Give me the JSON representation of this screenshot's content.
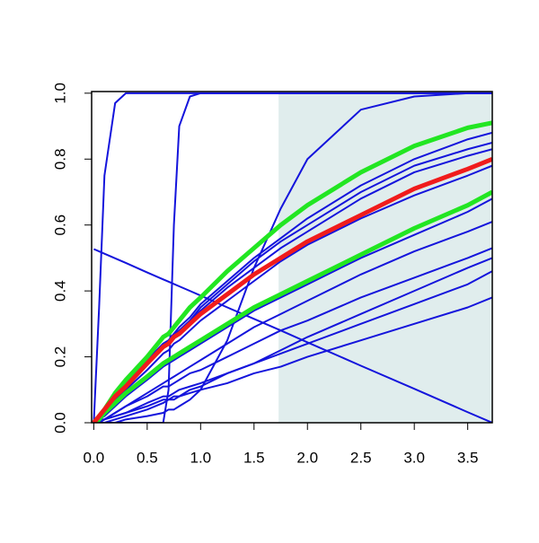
{
  "chart_data": {
    "type": "line",
    "x": [
      0,
      0.05,
      0.1,
      0.2,
      0.3,
      0.5,
      0.65,
      0.7,
      0.75,
      0.8,
      0.9,
      1.0,
      1.25,
      1.5,
      1.75,
      2.0,
      2.5,
      3.0,
      3.5,
      3.73
    ],
    "xlim": [
      -0.02,
      3.73
    ],
    "ylim": [
      0,
      1.005
    ],
    "xticks": [
      {
        "value": 0,
        "label": "0.0"
      },
      0.5,
      {
        "value": 1,
        "label": "1.0"
      },
      1.5,
      {
        "value": 2,
        "label": "2.0"
      },
      2.5,
      {
        "value": 3,
        "label": "3.0"
      },
      3.5
    ],
    "yticks": [
      {
        "value": 0,
        "label": "0.0"
      },
      0.2,
      0.4,
      0.6,
      0.8,
      {
        "value": 1,
        "label": "1.0"
      }
    ],
    "shaded_region": {
      "x": [
        1.73,
        3.73
      ],
      "color": "#e0eded"
    },
    "series": [
      {
        "color": "#1414dc",
        "line_width": 2,
        "values": [
          0,
          0.35,
          0.75,
          0.97,
          1,
          1,
          1,
          1,
          1,
          1,
          1,
          1,
          1,
          1,
          1,
          1,
          1,
          1,
          1,
          1
        ]
      },
      {
        "color": "#1414dc",
        "line_width": 2,
        "values": [
          0,
          0,
          0,
          0,
          0,
          0,
          0,
          0.1,
          0.6,
          0.9,
          0.99,
          1,
          1,
          1,
          1,
          1,
          1,
          1,
          1,
          1
        ]
      },
      {
        "color": "#1414dc",
        "line_width": 2,
        "values": [
          0,
          0,
          0,
          0,
          0.01,
          0.02,
          0.03,
          0.04,
          0.04,
          0.05,
          0.07,
          0.1,
          0.25,
          0.47,
          0.65,
          0.8,
          0.95,
          0.99,
          1,
          1
        ]
      },
      {
        "color": "#1414dc",
        "line_width": 2,
        "values": [
          0.527,
          0.52,
          0.513,
          0.499,
          0.485,
          0.456,
          0.435,
          0.428,
          0.421,
          0.414,
          0.4,
          0.386,
          0.35,
          0.315,
          0.28,
          0.244,
          0.173,
          0.103,
          0.032,
          0
        ]
      },
      {
        "color": "#1414dc",
        "line_width": 2,
        "values": [
          0,
          0.02,
          0.04,
          0.08,
          0.12,
          0.19,
          0.24,
          0.25,
          0.27,
          0.29,
          0.32,
          0.36,
          0.43,
          0.5,
          0.56,
          0.62,
          0.72,
          0.8,
          0.86,
          0.88
        ]
      },
      {
        "color": "#1414dc",
        "line_width": 2,
        "values": [
          0,
          0.02,
          0.04,
          0.08,
          0.12,
          0.19,
          0.24,
          0.25,
          0.27,
          0.28,
          0.31,
          0.35,
          0.42,
          0.49,
          0.55,
          0.6,
          0.7,
          0.78,
          0.83,
          0.85
        ]
      },
      {
        "color": "#1414dc",
        "line_width": 2,
        "values": [
          0,
          0.02,
          0.04,
          0.08,
          0.11,
          0.18,
          0.23,
          0.25,
          0.26,
          0.28,
          0.31,
          0.34,
          0.41,
          0.47,
          0.53,
          0.58,
          0.68,
          0.76,
          0.81,
          0.83
        ]
      },
      {
        "color": "#1414dc",
        "line_width": 2,
        "values": [
          0,
          0.01,
          0.03,
          0.07,
          0.1,
          0.16,
          0.21,
          0.22,
          0.24,
          0.25,
          0.28,
          0.31,
          0.37,
          0.43,
          0.49,
          0.54,
          0.62,
          0.69,
          0.75,
          0.78
        ]
      },
      {
        "color": "#1414dc",
        "line_width": 2,
        "values": [
          0,
          0.01,
          0.02,
          0.05,
          0.08,
          0.13,
          0.17,
          0.18,
          0.19,
          0.2,
          0.22,
          0.24,
          0.29,
          0.34,
          0.38,
          0.42,
          0.5,
          0.57,
          0.64,
          0.68
        ]
      },
      {
        "color": "#1414dc",
        "line_width": 2,
        "values": [
          0,
          0,
          0.01,
          0.03,
          0.05,
          0.09,
          0.12,
          0.13,
          0.14,
          0.15,
          0.17,
          0.19,
          0.24,
          0.29,
          0.33,
          0.37,
          0.45,
          0.52,
          0.58,
          0.61
        ]
      },
      {
        "color": "#1414dc",
        "line_width": 2,
        "values": [
          0,
          0.01,
          0.01,
          0.03,
          0.05,
          0.08,
          0.11,
          0.11,
          0.12,
          0.13,
          0.15,
          0.16,
          0.2,
          0.24,
          0.28,
          0.31,
          0.38,
          0.44,
          0.5,
          0.53
        ]
      },
      {
        "color": "#1414dc",
        "line_width": 2,
        "values": [
          0,
          0,
          0,
          0.01,
          0.02,
          0.04,
          0.06,
          0.07,
          0.08,
          0.08,
          0.1,
          0.11,
          0.15,
          0.18,
          0.22,
          0.26,
          0.33,
          0.4,
          0.47,
          0.5
        ]
      },
      {
        "color": "#1414dc",
        "line_width": 2,
        "values": [
          0,
          0,
          0.01,
          0.02,
          0.03,
          0.06,
          0.08,
          0.08,
          0.09,
          0.1,
          0.11,
          0.12,
          0.15,
          0.18,
          0.21,
          0.24,
          0.3,
          0.36,
          0.42,
          0.46
        ]
      },
      {
        "color": "#1414dc",
        "line_width": 2,
        "values": [
          0,
          0,
          0.01,
          0.02,
          0.03,
          0.05,
          0.07,
          0.07,
          0.07,
          0.08,
          0.09,
          0.1,
          0.12,
          0.15,
          0.17,
          0.2,
          0.25,
          0.3,
          0.35,
          0.38
        ]
      },
      {
        "color": "#22e622",
        "line_width": 5,
        "values": [
          0,
          0.02,
          0.04,
          0.09,
          0.13,
          0.2,
          0.26,
          0.27,
          0.29,
          0.31,
          0.35,
          0.38,
          0.46,
          0.53,
          0.6,
          0.66,
          0.76,
          0.84,
          0.895,
          0.91
        ]
      },
      {
        "color": "#22e622",
        "line_width": 5,
        "values": [
          0,
          0.01,
          0.03,
          0.06,
          0.09,
          0.14,
          0.18,
          0.19,
          0.2,
          0.21,
          0.23,
          0.25,
          0.3,
          0.35,
          0.39,
          0.43,
          0.51,
          0.59,
          0.66,
          0.7
        ]
      },
      {
        "color": "#f01c1c",
        "line_width": 5,
        "values": [
          0,
          0.02,
          0.04,
          0.08,
          0.11,
          0.18,
          0.23,
          0.24,
          0.26,
          0.27,
          0.3,
          0.33,
          0.39,
          0.45,
          0.5,
          0.55,
          0.63,
          0.71,
          0.77,
          0.8
        ]
      }
    ]
  }
}
